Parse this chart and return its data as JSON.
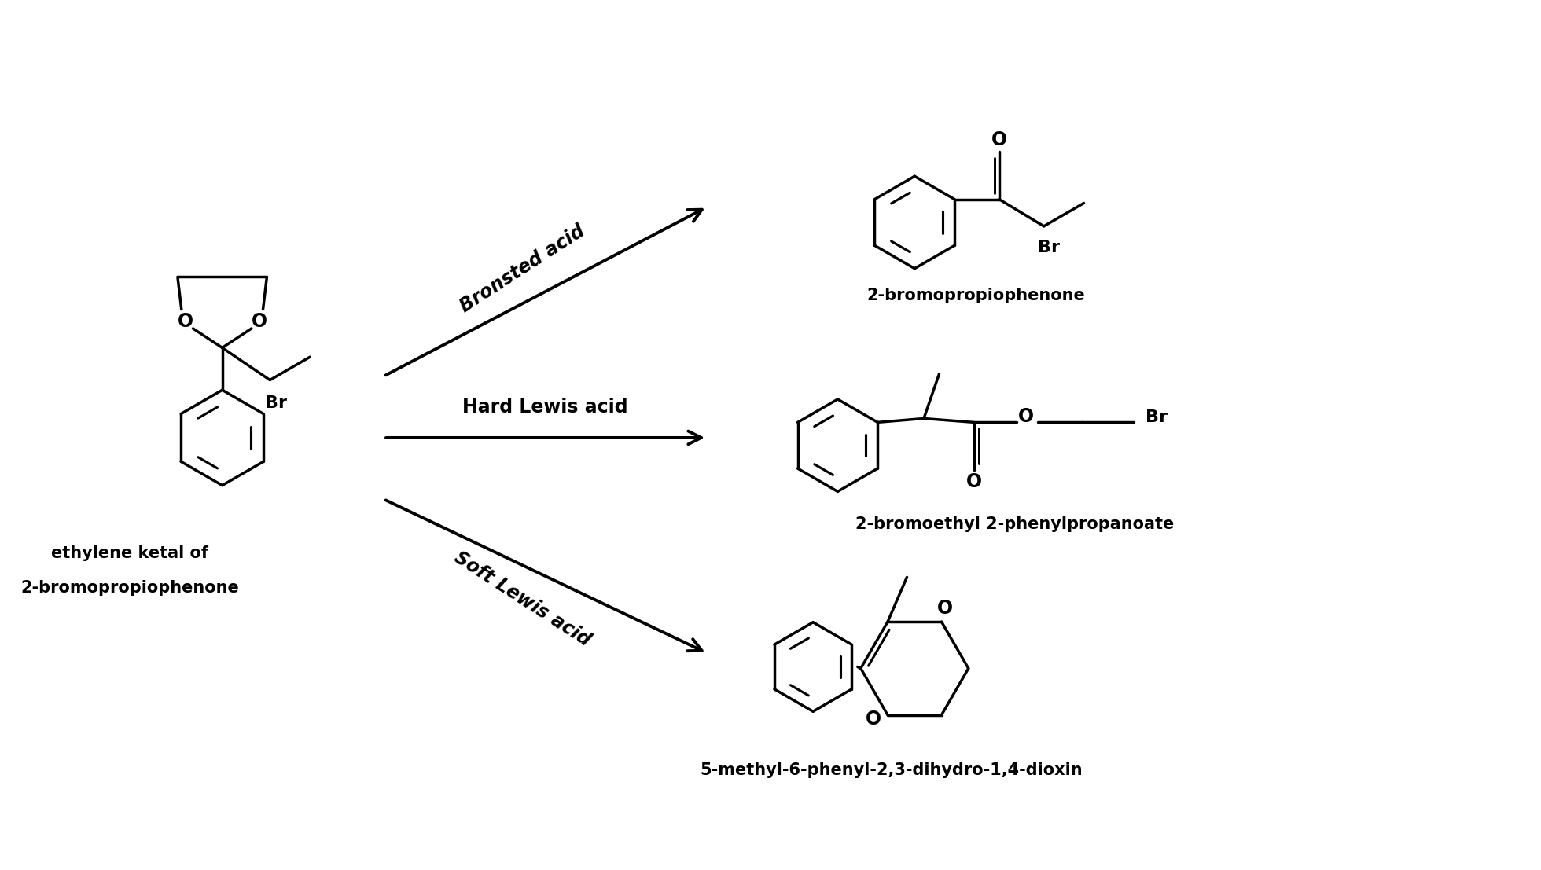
{
  "background_color": "#ffffff",
  "line_color": "#000000",
  "line_width": 2.5,
  "arrow_label_1": "Bronsted acid",
  "arrow_label_2": "Hard Lewis acid",
  "arrow_label_3": "Soft Lewis acid",
  "product_label_1": "2-bromopropiophenone",
  "product_label_2": "2-bromoethyl 2-phenylpropanoate",
  "product_label_3": "5-methyl-6-phenyl-2,3-dihydro-1,4-dioxin",
  "reactant_label_1": "ethylene ketal of",
  "reactant_label_2": "2-bromopropiophenone",
  "figsize": [
    19.6,
    11.07
  ],
  "dpi": 100
}
